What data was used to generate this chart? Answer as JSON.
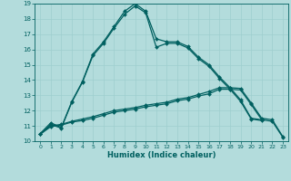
{
  "xlabel": "Humidex (Indice chaleur)",
  "xlim": [
    -0.5,
    23.5
  ],
  "ylim": [
    10,
    19
  ],
  "yticks": [
    10,
    11,
    12,
    13,
    14,
    15,
    16,
    17,
    18,
    19
  ],
  "xticks": [
    0,
    1,
    2,
    3,
    4,
    5,
    6,
    7,
    8,
    9,
    10,
    11,
    12,
    13,
    14,
    15,
    16,
    17,
    18,
    19,
    20,
    21,
    22,
    23
  ],
  "background_color": "#b3dcdc",
  "grid_color": "#9ecece",
  "line_color": "#006060",
  "line1_x": [
    0,
    1,
    2,
    3,
    4,
    5,
    6,
    7,
    8,
    9,
    10,
    11,
    12,
    13,
    14,
    15,
    16,
    17,
    18,
    19,
    20,
    21
  ],
  "line1_y": [
    10.5,
    11.2,
    10.9,
    12.6,
    13.9,
    15.7,
    16.5,
    17.5,
    18.5,
    19.0,
    18.5,
    16.7,
    16.5,
    16.5,
    16.2,
    15.5,
    15.0,
    14.2,
    13.5,
    12.7,
    11.5,
    11.4
  ],
  "line2_x": [
    0,
    1,
    2,
    3,
    4,
    5,
    6,
    7,
    8,
    9,
    10,
    11,
    12,
    13,
    14,
    15,
    16,
    17,
    18,
    19,
    20,
    21
  ],
  "line2_y": [
    10.45,
    11.1,
    10.85,
    12.55,
    13.85,
    15.6,
    16.4,
    17.4,
    18.3,
    18.85,
    18.4,
    16.15,
    16.4,
    16.4,
    16.1,
    15.4,
    14.9,
    14.1,
    13.4,
    12.6,
    11.45,
    11.35
  ],
  "line3_x": [
    0,
    1,
    2,
    3,
    4,
    5,
    6,
    7,
    8,
    9,
    10,
    11,
    12,
    13,
    14,
    15,
    16,
    17,
    18,
    19,
    20,
    21,
    22,
    23
  ],
  "line3_y": [
    10.5,
    11.0,
    11.1,
    11.3,
    11.45,
    11.6,
    11.8,
    12.0,
    12.1,
    12.2,
    12.35,
    12.45,
    12.55,
    12.75,
    12.85,
    13.05,
    13.25,
    13.5,
    13.5,
    13.45,
    12.5,
    11.5,
    11.4,
    10.3
  ],
  "line4_x": [
    0,
    1,
    2,
    3,
    4,
    5,
    6,
    7,
    8,
    9,
    10,
    11,
    12,
    13,
    14,
    15,
    16,
    17,
    18,
    19,
    20,
    21,
    22,
    23
  ],
  "line4_y": [
    10.45,
    10.95,
    11.05,
    11.25,
    11.35,
    11.5,
    11.7,
    11.9,
    12.0,
    12.1,
    12.25,
    12.35,
    12.45,
    12.65,
    12.75,
    12.95,
    13.1,
    13.4,
    13.4,
    13.35,
    12.4,
    11.4,
    11.3,
    10.25
  ]
}
